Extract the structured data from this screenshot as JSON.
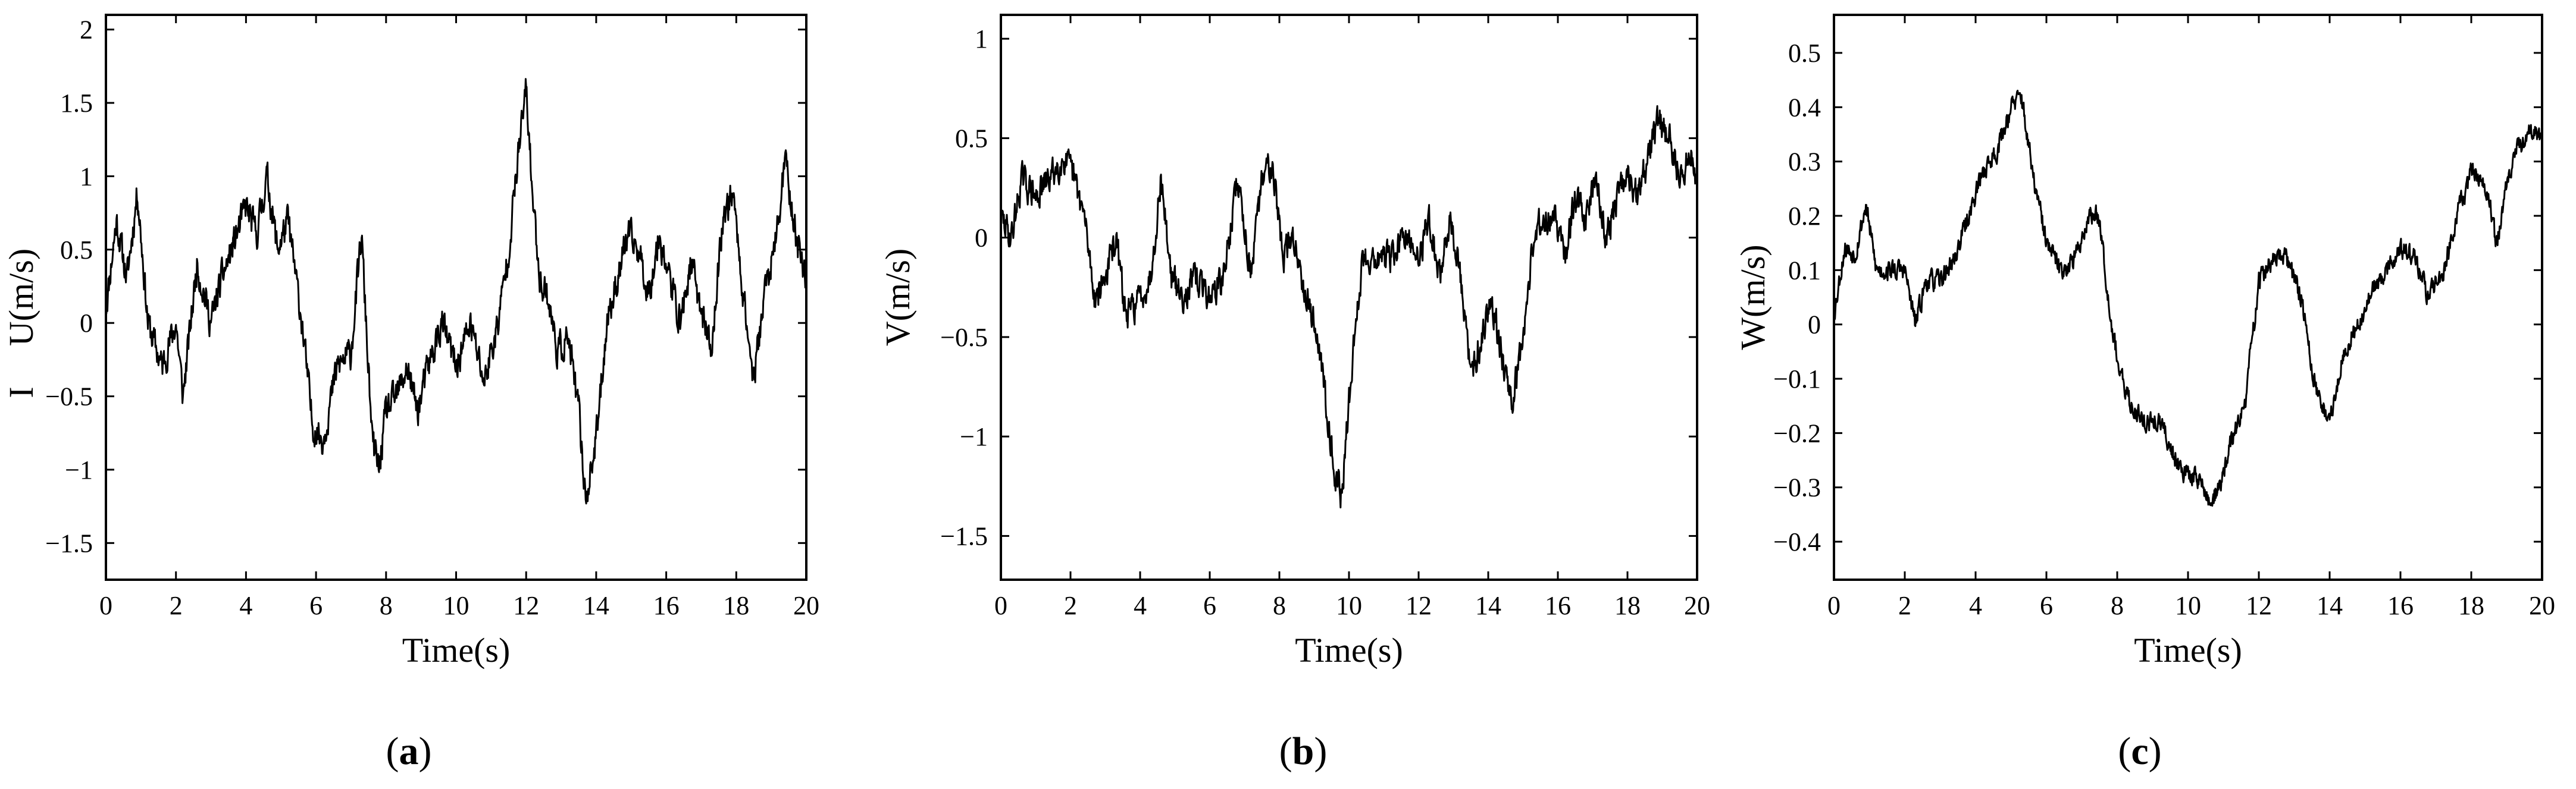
{
  "figure": {
    "background": "#ffffff",
    "line_color": "#000000"
  },
  "chart_data": [
    {
      "type": "line",
      "panel_label": "a",
      "panel_open": "(",
      "panel_close": ")",
      "xlabel": "Time(s)",
      "ylabel": "U(m/s)",
      "ylabel_mark": "I",
      "xlim": [
        0,
        20
      ],
      "ylim": [
        -1.75,
        2.1
      ],
      "xticks": [
        0,
        2,
        4,
        6,
        8,
        10,
        12,
        14,
        16,
        18,
        20
      ],
      "xtick_labels": [
        "0",
        "2",
        "4",
        "6",
        "8",
        "10",
        "12",
        "14",
        "16",
        "18",
        "20"
      ],
      "yticks": [
        -1.5,
        -1,
        -0.5,
        0,
        0.5,
        1,
        1.5,
        2
      ],
      "ytick_labels": [
        "−1.5",
        "−1",
        "−0.5",
        "0",
        "0.5",
        "1",
        "1.5",
        "2"
      ],
      "seed": 11,
      "noise": 0.17,
      "series": [
        {
          "name": "U",
          "x": [
            0,
            0.3,
            0.6,
            0.9,
            1.2,
            1.6,
            2.0,
            2.2,
            2.6,
            3.0,
            3.3,
            3.6,
            4.0,
            4.3,
            4.6,
            4.9,
            5.2,
            5.6,
            5.9,
            6.2,
            6.6,
            7.0,
            7.3,
            7.6,
            7.8,
            8.0,
            8.3,
            8.6,
            8.9,
            9.2,
            9.6,
            10.0,
            10.4,
            10.8,
            11.2,
            11.5,
            11.8,
            12.0,
            12.2,
            12.4,
            12.6,
            12.9,
            13.2,
            13.5,
            13.7,
            14.0,
            14.3,
            14.6,
            14.9,
            15.2,
            15.5,
            15.8,
            16.1,
            16.4,
            16.7,
            17.0,
            17.3,
            17.6,
            17.9,
            18.2,
            18.5,
            18.8,
            19.1,
            19.4,
            19.7,
            20.0
          ],
          "y": [
            0.1,
            0.7,
            0.3,
            0.9,
            0.0,
            -0.3,
            0.0,
            -0.5,
            0.4,
            0.0,
            0.3,
            0.5,
            0.8,
            0.6,
            1.0,
            0.5,
            0.7,
            0.0,
            -0.7,
            -0.8,
            -0.3,
            -0.2,
            0.6,
            -0.8,
            -1.0,
            -0.6,
            -0.5,
            -0.3,
            -0.6,
            -0.3,
            0.0,
            -0.3,
            0.0,
            -0.4,
            0.0,
            0.5,
            1.2,
            1.6,
            0.8,
            0.3,
            0.2,
            -0.2,
            -0.1,
            -0.6,
            -1.2,
            -0.8,
            0.0,
            0.3,
            0.6,
            0.5,
            0.2,
            0.6,
            0.3,
            0.0,
            0.4,
            0.1,
            -0.2,
            0.7,
            0.9,
            0.2,
            -0.4,
            0.2,
            0.5,
            1.1,
            0.6,
            0.3
          ]
        }
      ]
    },
    {
      "type": "line",
      "panel_label": "b",
      "panel_open": "(",
      "panel_close": ")",
      "xlabel": "Time(s)",
      "ylabel": "V(m/s)",
      "ylabel_mark": "",
      "xlim": [
        0,
        20
      ],
      "ylim": [
        -1.72,
        1.12
      ],
      "xticks": [
        0,
        2,
        4,
        6,
        8,
        10,
        12,
        14,
        16,
        18,
        20
      ],
      "xtick_labels": [
        "0",
        "2",
        "4",
        "6",
        "8",
        "10",
        "12",
        "14",
        "16",
        "18",
        "20"
      ],
      "yticks": [
        -1.5,
        -1,
        -0.5,
        0,
        0.5,
        1
      ],
      "ytick_labels": [
        "−1.5",
        "−1",
        "−0.5",
        "0",
        "0.5",
        "1"
      ],
      "seed": 29,
      "noise": 0.12,
      "series": [
        {
          "name": "V",
          "x": [
            0,
            0.3,
            0.6,
            1.0,
            1.4,
            1.8,
            2.1,
            2.4,
            2.7,
            3.0,
            3.3,
            3.6,
            4.0,
            4.3,
            4.6,
            4.9,
            5.2,
            5.6,
            6.0,
            6.4,
            6.8,
            7.2,
            7.5,
            7.8,
            8.1,
            8.4,
            8.8,
            9.1,
            9.4,
            9.6,
            9.8,
            10.1,
            10.4,
            10.8,
            11.2,
            11.6,
            12.0,
            12.3,
            12.6,
            12.9,
            13.2,
            13.5,
            13.8,
            14.1,
            14.4,
            14.7,
            15.0,
            15.3,
            15.6,
            15.9,
            16.2,
            16.5,
            16.8,
            17.1,
            17.4,
            17.7,
            18.0,
            18.3,
            18.6,
            18.9,
            19.2,
            19.5,
            19.8,
            20.0
          ],
          "y": [
            0.1,
            0.0,
            0.3,
            0.2,
            0.3,
            0.4,
            0.3,
            0.1,
            -0.3,
            -0.2,
            0.0,
            -0.4,
            -0.3,
            -0.2,
            0.3,
            -0.2,
            -0.3,
            -0.2,
            -0.3,
            -0.2,
            0.3,
            -0.2,
            0.3,
            0.4,
            -0.1,
            0.0,
            -0.3,
            -0.5,
            -0.9,
            -1.2,
            -1.3,
            -0.6,
            -0.1,
            -0.1,
            -0.1,
            0.0,
            -0.1,
            0.1,
            -0.2,
            0.1,
            -0.2,
            -0.7,
            -0.5,
            -0.3,
            -0.6,
            -0.8,
            -0.5,
            0.0,
            0.1,
            0.1,
            -0.1,
            0.2,
            0.1,
            0.3,
            0.0,
            0.2,
            0.3,
            0.2,
            0.4,
            0.6,
            0.5,
            0.3,
            0.4,
            0.3
          ]
        }
      ]
    },
    {
      "type": "line",
      "panel_label": "c",
      "panel_open": "(",
      "panel_close": ")",
      "xlabel": "Time(s)",
      "ylabel": "W(m/s)",
      "ylabel_mark": "",
      "xlim": [
        0,
        20
      ],
      "ylim": [
        -0.47,
        0.57
      ],
      "xticks": [
        0,
        2,
        4,
        6,
        8,
        10,
        12,
        14,
        16,
        18,
        20
      ],
      "xtick_labels": [
        "0",
        "2",
        "4",
        "6",
        "8",
        "10",
        "12",
        "14",
        "16",
        "18",
        "20"
      ],
      "yticks": [
        -0.4,
        -0.3,
        -0.2,
        -0.1,
        0,
        0.1,
        0.2,
        0.3,
        0.4,
        0.5
      ],
      "ytick_labels": [
        "−0.4",
        "−0.3",
        "−0.2",
        "−0.1",
        "0",
        "0.1",
        "0.2",
        "0.3",
        "0.4",
        "0.5"
      ],
      "seed": 53,
      "noise": 0.03,
      "series": [
        {
          "name": "W",
          "x": [
            0,
            0.3,
            0.6,
            0.9,
            1.2,
            1.6,
            2.0,
            2.3,
            2.6,
            3.0,
            3.4,
            3.8,
            4.2,
            4.6,
            5.0,
            5.3,
            5.6,
            6.0,
            6.4,
            6.8,
            7.2,
            7.5,
            7.8,
            8.1,
            8.4,
            8.8,
            9.2,
            9.6,
            10.0,
            10.3,
            10.6,
            10.9,
            11.2,
            11.6,
            12.0,
            12.4,
            12.8,
            13.2,
            13.6,
            14.0,
            14.4,
            14.8,
            15.2,
            15.6,
            16.0,
            16.4,
            16.8,
            17.2,
            17.6,
            18.0,
            18.4,
            18.7,
            19.0,
            19.3,
            19.6,
            20.0
          ],
          "y": [
            0.02,
            0.14,
            0.13,
            0.22,
            0.1,
            0.1,
            0.1,
            0.0,
            0.08,
            0.08,
            0.12,
            0.2,
            0.28,
            0.32,
            0.4,
            0.42,
            0.28,
            0.15,
            0.1,
            0.12,
            0.2,
            0.2,
            0.02,
            -0.1,
            -0.15,
            -0.18,
            -0.18,
            -0.24,
            -0.28,
            -0.28,
            -0.33,
            -0.3,
            -0.22,
            -0.15,
            0.08,
            0.12,
            0.12,
            0.05,
            -0.12,
            -0.18,
            -0.05,
            0.0,
            0.06,
            0.1,
            0.14,
            0.12,
            0.05,
            0.1,
            0.2,
            0.28,
            0.26,
            0.15,
            0.25,
            0.32,
            0.36,
            0.34
          ]
        }
      ]
    }
  ]
}
